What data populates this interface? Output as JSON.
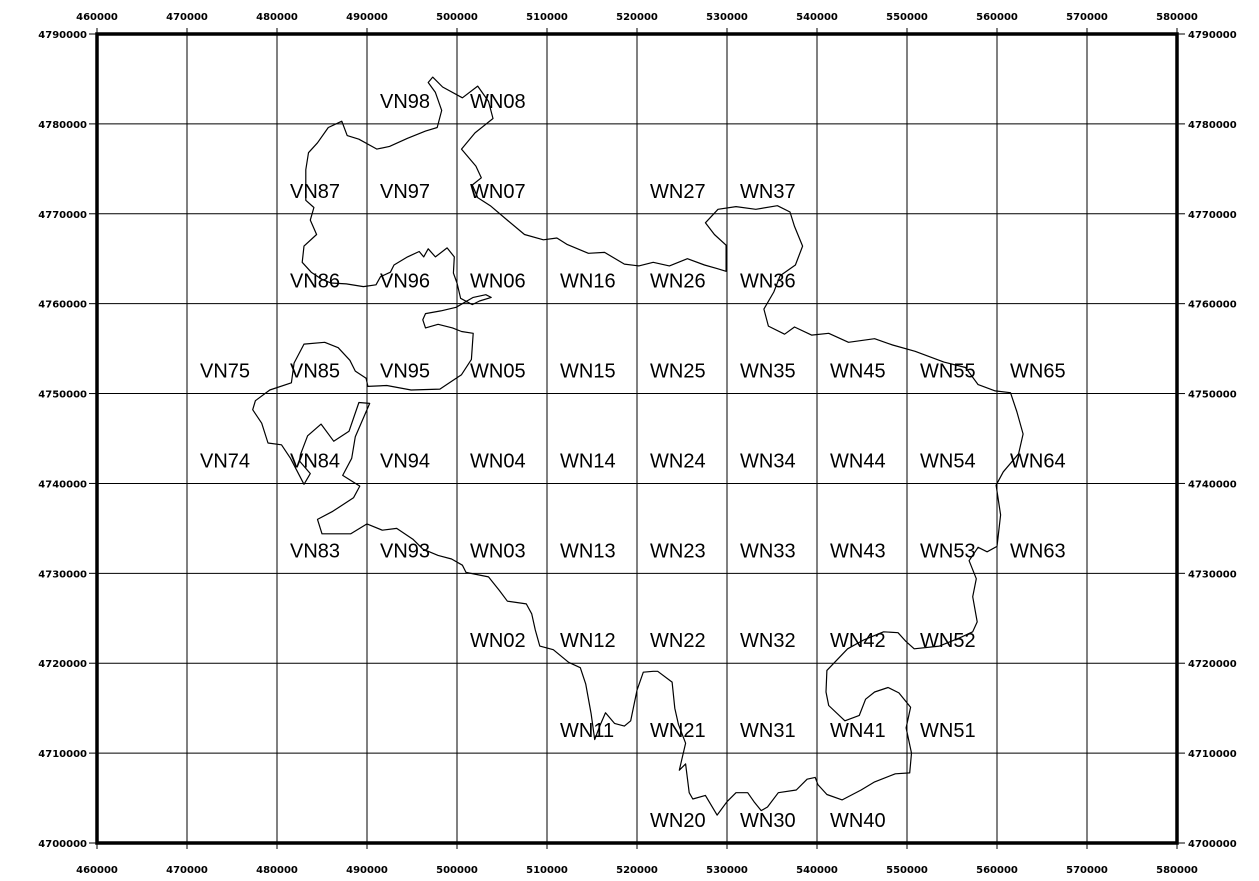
{
  "map": {
    "x_ticks": [
      "460000",
      "470000",
      "480000",
      "490000",
      "500000",
      "510000",
      "520000",
      "530000",
      "540000",
      "550000",
      "560000",
      "570000",
      "580000"
    ],
    "y_ticks": [
      "4790000",
      "4780000",
      "4770000",
      "4760000",
      "4750000",
      "4740000",
      "4730000",
      "4720000",
      "4710000",
      "4700000"
    ],
    "x_range": [
      460000,
      580000
    ],
    "y_range": [
      4700000,
      4790000
    ],
    "grid": true,
    "boundary_color": "#000000",
    "cells": [
      {
        "label": "VN98",
        "x": 490000,
        "y": 4780000
      },
      {
        "label": "WN08",
        "x": 500000,
        "y": 4780000
      },
      {
        "label": "VN87",
        "x": 480000,
        "y": 4770000
      },
      {
        "label": "VN97",
        "x": 490000,
        "y": 4770000
      },
      {
        "label": "WN07",
        "x": 500000,
        "y": 4770000
      },
      {
        "label": "WN27",
        "x": 520000,
        "y": 4770000
      },
      {
        "label": "WN37",
        "x": 530000,
        "y": 4770000
      },
      {
        "label": "VN86",
        "x": 480000,
        "y": 4760000
      },
      {
        "label": "VN96",
        "x": 490000,
        "y": 4760000
      },
      {
        "label": "WN06",
        "x": 500000,
        "y": 4760000
      },
      {
        "label": "WN16",
        "x": 510000,
        "y": 4760000
      },
      {
        "label": "WN26",
        "x": 520000,
        "y": 4760000
      },
      {
        "label": "WN36",
        "x": 530000,
        "y": 4760000
      },
      {
        "label": "VN75",
        "x": 470000,
        "y": 4750000
      },
      {
        "label": "VN85",
        "x": 480000,
        "y": 4750000
      },
      {
        "label": "VN95",
        "x": 490000,
        "y": 4750000
      },
      {
        "label": "WN05",
        "x": 500000,
        "y": 4750000
      },
      {
        "label": "WN15",
        "x": 510000,
        "y": 4750000
      },
      {
        "label": "WN25",
        "x": 520000,
        "y": 4750000
      },
      {
        "label": "WN35",
        "x": 530000,
        "y": 4750000
      },
      {
        "label": "WN45",
        "x": 540000,
        "y": 4750000
      },
      {
        "label": "WN55",
        "x": 550000,
        "y": 4750000
      },
      {
        "label": "WN65",
        "x": 560000,
        "y": 4750000
      },
      {
        "label": "VN74",
        "x": 470000,
        "y": 4740000
      },
      {
        "label": "VN84",
        "x": 480000,
        "y": 4740000
      },
      {
        "label": "VN94",
        "x": 490000,
        "y": 4740000
      },
      {
        "label": "WN04",
        "x": 500000,
        "y": 4740000
      },
      {
        "label": "WN14",
        "x": 510000,
        "y": 4740000
      },
      {
        "label": "WN24",
        "x": 520000,
        "y": 4740000
      },
      {
        "label": "WN34",
        "x": 530000,
        "y": 4740000
      },
      {
        "label": "WN44",
        "x": 540000,
        "y": 4740000
      },
      {
        "label": "WN54",
        "x": 550000,
        "y": 4740000
      },
      {
        "label": "WN64",
        "x": 560000,
        "y": 4740000
      },
      {
        "label": "VN83",
        "x": 480000,
        "y": 4730000
      },
      {
        "label": "VN93",
        "x": 490000,
        "y": 4730000
      },
      {
        "label": "WN03",
        "x": 500000,
        "y": 4730000
      },
      {
        "label": "WN13",
        "x": 510000,
        "y": 4730000
      },
      {
        "label": "WN23",
        "x": 520000,
        "y": 4730000
      },
      {
        "label": "WN33",
        "x": 530000,
        "y": 4730000
      },
      {
        "label": "WN43",
        "x": 540000,
        "y": 4730000
      },
      {
        "label": "WN53",
        "x": 550000,
        "y": 4730000
      },
      {
        "label": "WN63",
        "x": 560000,
        "y": 4730000
      },
      {
        "label": "WN02",
        "x": 500000,
        "y": 4720000
      },
      {
        "label": "WN12",
        "x": 510000,
        "y": 4720000
      },
      {
        "label": "WN22",
        "x": 520000,
        "y": 4720000
      },
      {
        "label": "WN32",
        "x": 530000,
        "y": 4720000
      },
      {
        "label": "WN42",
        "x": 540000,
        "y": 4720000
      },
      {
        "label": "WN52",
        "x": 550000,
        "y": 4720000
      },
      {
        "label": "WN11",
        "x": 510000,
        "y": 4710000
      },
      {
        "label": "WN21",
        "x": 520000,
        "y": 4710000
      },
      {
        "label": "WN31",
        "x": 530000,
        "y": 4710000
      },
      {
        "label": "WN41",
        "x": 540000,
        "y": 4710000
      },
      {
        "label": "WN51",
        "x": 550000,
        "y": 4710000
      },
      {
        "label": "WN20",
        "x": 520000,
        "y": 4700000
      },
      {
        "label": "WN30",
        "x": 530000,
        "y": 4700000
      },
      {
        "label": "WN40",
        "x": 540000,
        "y": 4700000
      }
    ],
    "boundary": [
      [
        497300,
        4785200
      ],
      [
        498400,
        4784100
      ],
      [
        500600,
        4782900
      ],
      [
        502300,
        4784200
      ],
      [
        503500,
        4782500
      ],
      [
        504000,
        4780600
      ],
      [
        502000,
        4779000
      ],
      [
        500500,
        4777200
      ],
      [
        502100,
        4775300
      ],
      [
        502700,
        4774000
      ],
      [
        501700,
        4773200
      ],
      [
        502300,
        4771800
      ],
      [
        503700,
        4770900
      ],
      [
        505700,
        4769200
      ],
      [
        507500,
        4767700
      ],
      [
        509600,
        4767100
      ],
      [
        511100,
        4767300
      ],
      [
        512200,
        4766600
      ],
      [
        514600,
        4765600
      ],
      [
        516400,
        4765700
      ],
      [
        518600,
        4764400
      ],
      [
        520200,
        4764200
      ],
      [
        521800,
        4764600
      ],
      [
        523600,
        4764200
      ],
      [
        525600,
        4765000
      ],
      [
        527500,
        4764300
      ],
      [
        528900,
        4763900
      ],
      [
        529900,
        4763600
      ],
      [
        529900,
        4766500
      ],
      [
        528600,
        4767700
      ],
      [
        527600,
        4769000
      ],
      [
        529000,
        4770500
      ],
      [
        531000,
        4770800
      ],
      [
        533200,
        4770500
      ],
      [
        535600,
        4770900
      ],
      [
        537000,
        4770200
      ],
      [
        537500,
        4768600
      ],
      [
        538400,
        4766400
      ],
      [
        537600,
        4764300
      ],
      [
        535900,
        4763100
      ],
      [
        535200,
        4761300
      ],
      [
        534100,
        4759400
      ],
      [
        534600,
        4757500
      ],
      [
        536400,
        4756600
      ],
      [
        537500,
        4757400
      ],
      [
        539400,
        4756500
      ],
      [
        541300,
        4756700
      ],
      [
        543500,
        4755700
      ],
      [
        546400,
        4756100
      ],
      [
        548400,
        4755400
      ],
      [
        550900,
        4754700
      ],
      [
        554100,
        4753500
      ],
      [
        556500,
        4752900
      ],
      [
        557900,
        4751000
      ],
      [
        559800,
        4750300
      ],
      [
        561500,
        4750100
      ],
      [
        562200,
        4748000
      ],
      [
        562900,
        4745500
      ],
      [
        562400,
        4743300
      ],
      [
        560700,
        4741300
      ],
      [
        559900,
        4739800
      ],
      [
        560400,
        4736500
      ],
      [
        560000,
        4733000
      ],
      [
        558900,
        4732400
      ],
      [
        557900,
        4732900
      ],
      [
        556900,
        4731400
      ],
      [
        557700,
        4729400
      ],
      [
        557300,
        4727400
      ],
      [
        557800,
        4724600
      ],
      [
        557300,
        4723500
      ],
      [
        555800,
        4722800
      ],
      [
        553600,
        4721900
      ],
      [
        550800,
        4721600
      ],
      [
        549900,
        4722400
      ],
      [
        549000,
        4723400
      ],
      [
        547400,
        4723500
      ],
      [
        545200,
        4722600
      ],
      [
        543400,
        4721600
      ],
      [
        541100,
        4719200
      ],
      [
        541000,
        4716800
      ],
      [
        541300,
        4715300
      ],
      [
        543100,
        4713600
      ],
      [
        544700,
        4714200
      ],
      [
        545400,
        4716000
      ],
      [
        546400,
        4716800
      ],
      [
        547900,
        4717300
      ],
      [
        549100,
        4716700
      ],
      [
        550400,
        4715100
      ],
      [
        549900,
        4712800
      ],
      [
        550500,
        4710000
      ],
      [
        550300,
        4707800
      ],
      [
        548700,
        4707700
      ],
      [
        546400,
        4706800
      ],
      [
        544900,
        4705900
      ],
      [
        542800,
        4704800
      ],
      [
        541100,
        4705400
      ],
      [
        540100,
        4706500
      ],
      [
        539800,
        4707300
      ],
      [
        538900,
        4707100
      ],
      [
        537700,
        4705900
      ],
      [
        535700,
        4705600
      ],
      [
        534500,
        4704000
      ],
      [
        533800,
        4703600
      ],
      [
        533000,
        4704600
      ],
      [
        532300,
        4705600
      ],
      [
        531000,
        4705600
      ],
      [
        530000,
        4704600
      ],
      [
        528900,
        4703100
      ],
      [
        527600,
        4705300
      ],
      [
        526200,
        4704900
      ],
      [
        525800,
        4705600
      ],
      [
        525400,
        4708800
      ],
      [
        524700,
        4708100
      ],
      [
        525400,
        4711100
      ],
      [
        524600,
        4713200
      ],
      [
        524200,
        4715000
      ],
      [
        523900,
        4717900
      ],
      [
        522300,
        4719100
      ],
      [
        521800,
        4719100
      ],
      [
        520700,
        4719000
      ],
      [
        520000,
        4717000
      ],
      [
        519300,
        4713600
      ],
      [
        518600,
        4713000
      ],
      [
        517500,
        4713300
      ],
      [
        516500,
        4714500
      ],
      [
        515900,
        4713100
      ],
      [
        515300,
        4711500
      ],
      [
        514900,
        4714400
      ],
      [
        514300,
        4717700
      ],
      [
        513700,
        4719500
      ],
      [
        512400,
        4720100
      ],
      [
        510700,
        4721500
      ],
      [
        509200,
        4721900
      ],
      [
        508700,
        4723700
      ],
      [
        508300,
        4725500
      ],
      [
        507700,
        4726600
      ],
      [
        505600,
        4726900
      ],
      [
        504700,
        4728100
      ],
      [
        503500,
        4729600
      ],
      [
        501000,
        4730100
      ],
      [
        500600,
        4730900
      ],
      [
        499400,
        4731600
      ],
      [
        497900,
        4732000
      ],
      [
        496200,
        4732700
      ],
      [
        495100,
        4733800
      ],
      [
        493300,
        4735000
      ],
      [
        491700,
        4734800
      ],
      [
        490000,
        4735500
      ],
      [
        488200,
        4734400
      ],
      [
        487000,
        4734400
      ],
      [
        485000,
        4734400
      ],
      [
        484500,
        4736000
      ],
      [
        486200,
        4736900
      ],
      [
        488500,
        4738400
      ],
      [
        489200,
        4739700
      ],
      [
        487300,
        4740900
      ],
      [
        488300,
        4742800
      ],
      [
        488700,
        4745200
      ],
      [
        490300,
        4748900
      ],
      [
        489100,
        4749000
      ],
      [
        488000,
        4745800
      ],
      [
        486300,
        4744700
      ],
      [
        484900,
        4746600
      ],
      [
        483400,
        4745300
      ],
      [
        482600,
        4743200
      ],
      [
        482500,
        4742500
      ],
      [
        483700,
        4741100
      ],
      [
        483000,
        4739900
      ],
      [
        481500,
        4742800
      ],
      [
        480500,
        4744300
      ],
      [
        479000,
        4744500
      ],
      [
        478300,
        4746700
      ],
      [
        477300,
        4748200
      ],
      [
        477600,
        4749200
      ],
      [
        479200,
        4750400
      ],
      [
        481600,
        4751200
      ],
      [
        481900,
        4753400
      ],
      [
        483000,
        4755500
      ],
      [
        485300,
        4755700
      ],
      [
        486800,
        4755100
      ],
      [
        488100,
        4753700
      ],
      [
        488700,
        4752500
      ],
      [
        489900,
        4751700
      ],
      [
        490100,
        4750800
      ],
      [
        492200,
        4750900
      ],
      [
        494900,
        4750400
      ],
      [
        498100,
        4750500
      ],
      [
        500500,
        4752100
      ],
      [
        501600,
        4753800
      ],
      [
        501800,
        4756700
      ],
      [
        500500,
        4756900
      ],
      [
        499500,
        4757300
      ],
      [
        497900,
        4757700
      ],
      [
        496500,
        4757300
      ],
      [
        496200,
        4758200
      ],
      [
        496500,
        4758900
      ],
      [
        498200,
        4759200
      ],
      [
        499900,
        4759600
      ],
      [
        501800,
        4760700
      ],
      [
        503200,
        4761000
      ],
      [
        503800,
        4760700
      ],
      [
        502500,
        4760300
      ],
      [
        501700,
        4759900
      ],
      [
        500400,
        4760600
      ],
      [
        500000,
        4762300
      ],
      [
        499600,
        4763400
      ],
      [
        499700,
        4765200
      ],
      [
        498900,
        4766200
      ],
      [
        497600,
        4765200
      ],
      [
        496800,
        4766100
      ],
      [
        496300,
        4765200
      ],
      [
        495800,
        4765800
      ],
      [
        494500,
        4765200
      ],
      [
        493000,
        4764300
      ],
      [
        492600,
        4763500
      ],
      [
        491500,
        4763000
      ],
      [
        491000,
        4762100
      ],
      [
        489600,
        4761900
      ],
      [
        487700,
        4762200
      ],
      [
        486000,
        4762300
      ],
      [
        485000,
        4762700
      ],
      [
        483800,
        4763500
      ],
      [
        482800,
        4764600
      ],
      [
        483000,
        4766400
      ],
      [
        484400,
        4767700
      ],
      [
        483700,
        4769300
      ],
      [
        484100,
        4770700
      ],
      [
        483200,
        4771500
      ],
      [
        483200,
        4774900
      ],
      [
        483500,
        4776800
      ],
      [
        484500,
        4777900
      ],
      [
        485700,
        4779600
      ],
      [
        487200,
        4780300
      ],
      [
        487800,
        4778700
      ],
      [
        489100,
        4778300
      ],
      [
        491100,
        4777200
      ],
      [
        492500,
        4777500
      ],
      [
        494500,
        4778400
      ],
      [
        496500,
        4779200
      ],
      [
        497800,
        4779600
      ],
      [
        498300,
        4781500
      ],
      [
        497600,
        4783500
      ],
      [
        496800,
        4784600
      ],
      [
        497300,
        4785200
      ]
    ]
  }
}
